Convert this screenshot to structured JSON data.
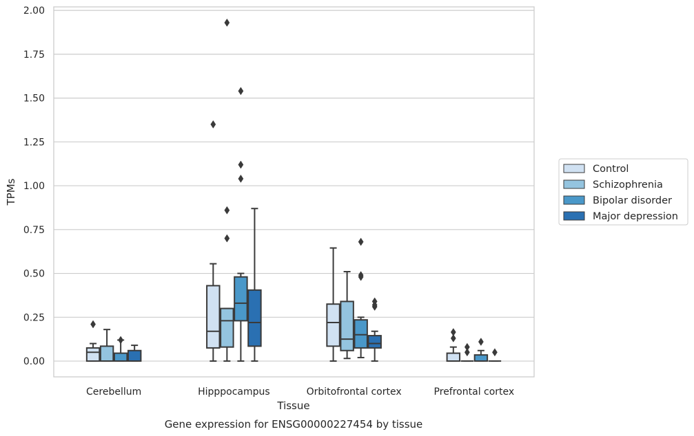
{
  "chart_data": {
    "type": "box",
    "title": "",
    "caption": "Gene expression for ENSG00000227454 by tissue",
    "xlabel": "Tissue",
    "ylabel": "TPMs",
    "ylim": [
      -0.09,
      2.02
    ],
    "yticks": [
      0.0,
      0.25,
      0.5,
      0.75,
      1.0,
      1.25,
      1.5,
      1.75,
      2.0
    ],
    "ytick_labels": [
      "0.00",
      "0.25",
      "0.50",
      "0.75",
      "1.00",
      "1.25",
      "1.50",
      "1.75",
      "2.00"
    ],
    "grid": "horizontal",
    "legend_position": "right",
    "categories": [
      "Cerebellum",
      "Hipppocampus",
      "Orbitofrontal cortex",
      "Prefrontal cortex"
    ],
    "series": [
      {
        "name": "Control",
        "color": "#d0e1f2",
        "boxes": [
          {
            "whislo": 0.0,
            "q1": 0.0,
            "med": 0.05,
            "q3": 0.075,
            "whishi": 0.1,
            "fliers": [
              0.21
            ]
          },
          {
            "whislo": 0.0,
            "q1": 0.075,
            "med": 0.17,
            "q3": 0.43,
            "whishi": 0.555,
            "fliers": [
              1.35
            ]
          },
          {
            "whislo": 0.0,
            "q1": 0.085,
            "med": 0.22,
            "q3": 0.325,
            "whishi": 0.645,
            "fliers": []
          },
          {
            "whislo": 0.0,
            "q1": 0.0,
            "med": 0.0,
            "q3": 0.045,
            "whishi": 0.08,
            "fliers": [
              0.13,
              0.165
            ]
          }
        ]
      },
      {
        "name": "Schizophrenia",
        "color": "#94c4df",
        "boxes": [
          {
            "whislo": 0.0,
            "q1": 0.0,
            "med": 0.0,
            "q3": 0.085,
            "whishi": 0.18,
            "fliers": []
          },
          {
            "whislo": 0.0,
            "q1": 0.08,
            "med": 0.23,
            "q3": 0.3,
            "whishi": 0.3,
            "fliers": [
              0.7,
              0.86,
              1.93
            ]
          },
          {
            "whislo": 0.015,
            "q1": 0.06,
            "med": 0.125,
            "q3": 0.34,
            "whishi": 0.51,
            "fliers": []
          },
          {
            "whislo": 0.0,
            "q1": 0.0,
            "med": 0.0,
            "q3": 0.0,
            "whishi": 0.0,
            "fliers": [
              0.05,
              0.08
            ]
          }
        ]
      },
      {
        "name": "Bipolar disorder",
        "color": "#4a98c9",
        "boxes": [
          {
            "whislo": 0.0,
            "q1": 0.0,
            "med": 0.0,
            "q3": 0.045,
            "whishi": 0.12,
            "fliers": [
              0.12
            ]
          },
          {
            "whislo": 0.0,
            "q1": 0.23,
            "med": 0.33,
            "q3": 0.48,
            "whishi": 0.5,
            "fliers": [
              1.04,
              1.12,
              1.54
            ]
          },
          {
            "whislo": 0.02,
            "q1": 0.075,
            "med": 0.15,
            "q3": 0.235,
            "whishi": 0.25,
            "fliers": [
              0.48,
              0.49,
              0.68
            ]
          },
          {
            "whislo": 0.0,
            "q1": 0.0,
            "med": 0.0,
            "q3": 0.035,
            "whishi": 0.06,
            "fliers": [
              0.11
            ]
          }
        ]
      },
      {
        "name": "Major depression",
        "color": "#2a70b2",
        "boxes": [
          {
            "whislo": 0.0,
            "q1": 0.0,
            "med": 0.0,
            "q3": 0.06,
            "whishi": 0.09,
            "fliers": []
          },
          {
            "whislo": 0.0,
            "q1": 0.085,
            "med": 0.22,
            "q3": 0.405,
            "whishi": 0.87,
            "fliers": []
          },
          {
            "whislo": 0.0,
            "q1": 0.075,
            "med": 0.1,
            "q3": 0.145,
            "whishi": 0.17,
            "fliers": [
              0.31,
              0.32,
              0.34
            ]
          },
          {
            "whislo": 0.0,
            "q1": 0.0,
            "med": 0.0,
            "q3": 0.0,
            "whishi": 0.0,
            "fliers": [
              0.05
            ]
          }
        ]
      }
    ]
  }
}
